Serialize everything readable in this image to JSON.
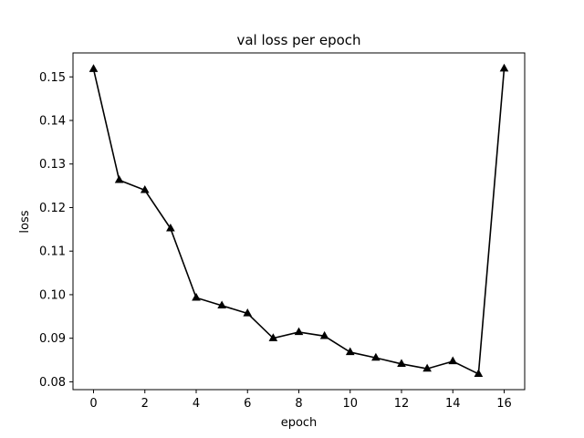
{
  "chart_data": {
    "type": "line",
    "title": "val loss per epoch",
    "xlabel": "epoch",
    "ylabel": "loss",
    "xlim": [
      -0.8,
      16.8
    ],
    "ylim": [
      0.0782,
      0.1555
    ],
    "xticks": [
      0,
      2,
      4,
      6,
      8,
      10,
      12,
      14,
      16
    ],
    "yticks": [
      0.08,
      0.09,
      0.1,
      0.11,
      0.12,
      0.13,
      0.14,
      0.15
    ],
    "xtick_labels": [
      "0",
      "2",
      "4",
      "6",
      "8",
      "10",
      "12",
      "14",
      "16"
    ],
    "ytick_labels": [
      "0.08",
      "0.09",
      "0.10",
      "0.11",
      "0.12",
      "0.13",
      "0.14",
      "0.15"
    ],
    "grid": false,
    "legend": "none",
    "series": [
      {
        "color": "#000000",
        "marker": "triangle-up",
        "x": [
          0,
          1,
          2,
          3,
          4,
          5,
          6,
          7,
          8,
          9,
          10,
          11,
          12,
          13,
          14,
          15,
          16
        ],
        "y": [
          0.1518,
          0.1263,
          0.124,
          0.1152,
          0.0993,
          0.0975,
          0.0957,
          0.09,
          0.0914,
          0.0905,
          0.0868,
          0.0855,
          0.0841,
          0.083,
          0.0847,
          0.0818,
          0.1519
        ]
      }
    ]
  }
}
